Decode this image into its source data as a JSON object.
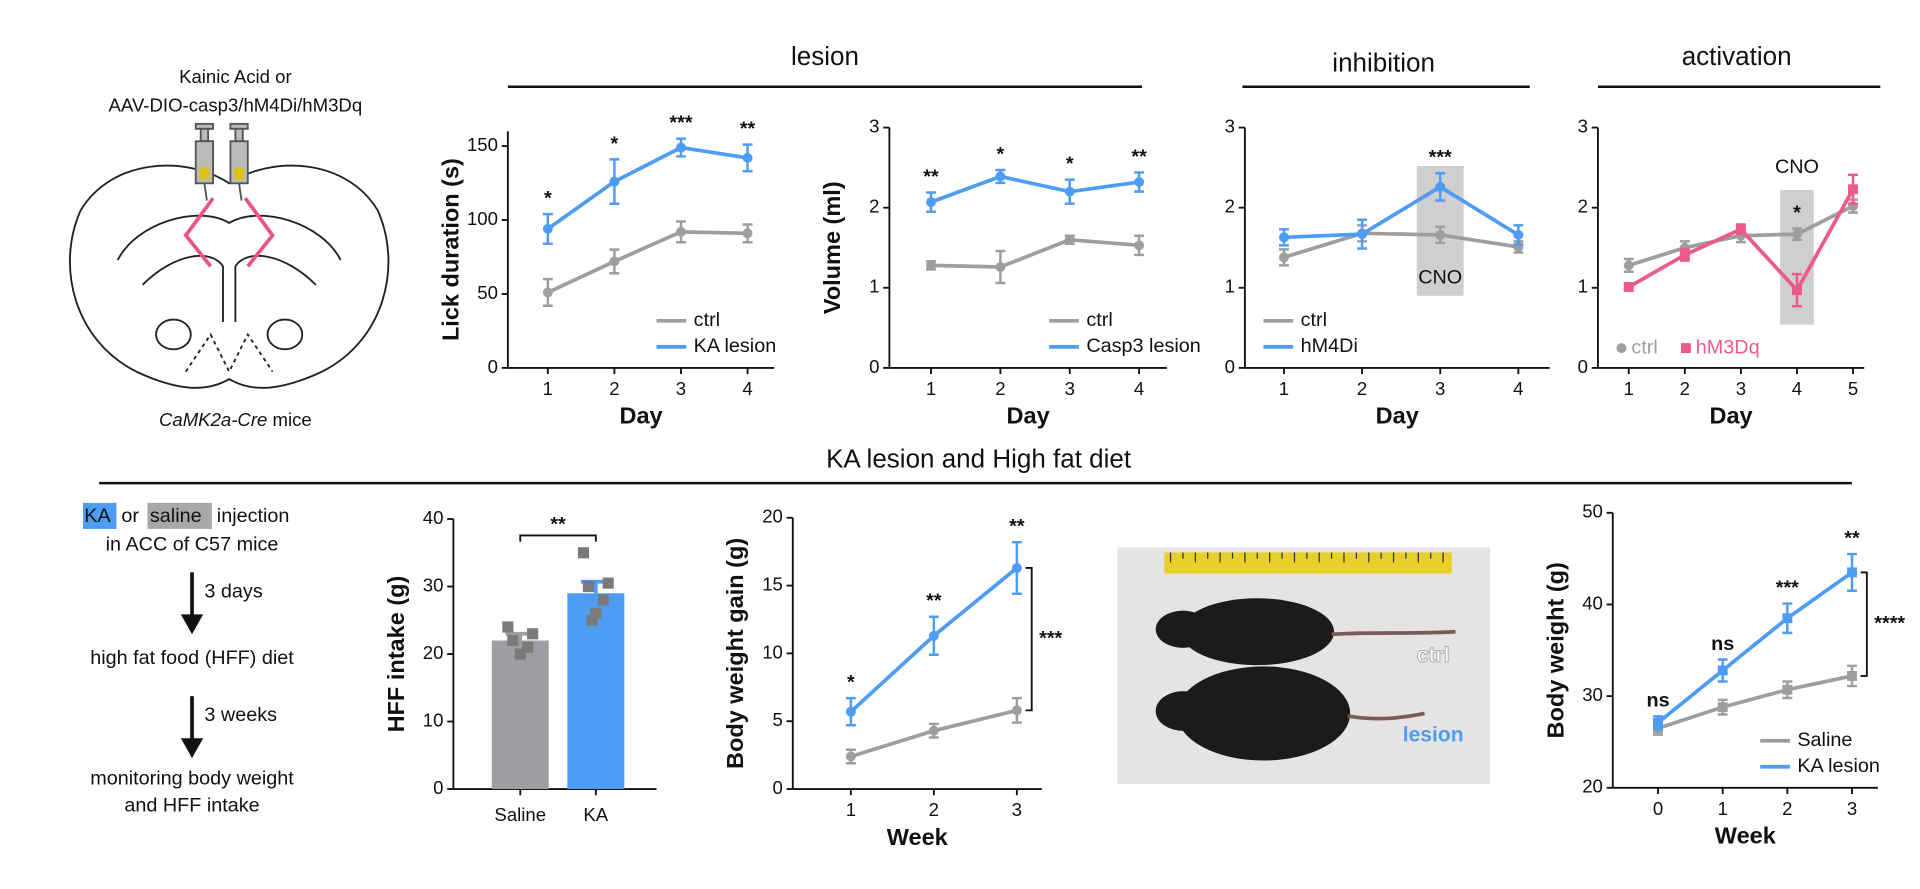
{
  "headers": {
    "lesion": "lesion",
    "inhibition": "inhibition",
    "activation": "activation",
    "hfd": "KA lesion and High fat diet"
  },
  "schematic": {
    "line1": "Kainic Acid or",
    "line2": "AAV-DIO-casp3/hM4Di/hM3Dq",
    "mouse_line": "CaMK2a-Cre",
    "mice": "mice"
  },
  "flow": {
    "ka": "KA",
    "or": "or",
    "saline": "saline",
    "injection": "injection",
    "site": "in ACC of C57 mice",
    "step1": "3 days",
    "diet": "high fat food (HFF) diet",
    "step2": "3 weeks",
    "monitor1": "monitoring body weight",
    "monitor2": "and HFF intake"
  },
  "photo": {
    "ctrl": "ctrl",
    "lesion": "lesion"
  },
  "chart_data": [
    {
      "type": "line",
      "ylabel": "Lick duration (s)",
      "xlabel": "Day",
      "x": [
        1,
        2,
        3,
        4
      ],
      "xlim": [
        0.4,
        4.4
      ],
      "xticks": [
        1,
        2,
        3,
        4
      ],
      "ylim": [
        0,
        160
      ],
      "yticks": [
        0,
        50,
        100,
        150
      ],
      "legend": "lower right",
      "series": [
        {
          "name": "ctrl",
          "color": "#9e9e9e",
          "values": [
            51,
            72,
            92,
            91
          ],
          "errors": [
            9,
            8,
            7,
            6
          ]
        },
        {
          "name": "KA lesion",
          "color": "#4e9cf3",
          "values": [
            94,
            126,
            149,
            142
          ],
          "errors": [
            10,
            15,
            6,
            9
          ]
        }
      ],
      "significance": [
        "*",
        "*",
        "***",
        "**"
      ]
    },
    {
      "type": "line",
      "ylabel": "Volume (ml)",
      "xlabel": "Day",
      "x": [
        1,
        2,
        3,
        4
      ],
      "xlim": [
        0.4,
        4.4
      ],
      "xticks": [
        1,
        2,
        3,
        4
      ],
      "ylim": [
        0,
        3
      ],
      "yticks": [
        0,
        1,
        2,
        3
      ],
      "legend": "lower right",
      "series": [
        {
          "name": "ctrl",
          "color": "#9e9e9e",
          "values": [
            1.28,
            1.26,
            1.6,
            1.53
          ],
          "errors": [
            0.05,
            0.2,
            0.05,
            0.12
          ]
        },
        {
          "name": "Casp3 lesion",
          "color": "#4e9cf3",
          "values": [
            2.07,
            2.39,
            2.2,
            2.32
          ],
          "errors": [
            0.12,
            0.08,
            0.15,
            0.12
          ]
        }
      ],
      "significance": [
        "**",
        "*",
        "*",
        "**"
      ]
    },
    {
      "type": "line",
      "xlabel": "Day",
      "x": [
        1,
        2,
        3,
        4
      ],
      "xlim": [
        0.5,
        4.4
      ],
      "xticks": [
        1,
        2,
        3,
        4
      ],
      "ylim": [
        0,
        3
      ],
      "yticks": [
        0,
        1,
        2,
        3
      ],
      "legend": "lower left",
      "highlight": {
        "x": 3,
        "label": "CNO",
        "label_position": "below"
      },
      "series": [
        {
          "name": "ctrl",
          "color": "#9e9e9e",
          "values": [
            1.38,
            1.68,
            1.66,
            1.51
          ],
          "errors": [
            0.1,
            0.1,
            0.1,
            0.07
          ]
        },
        {
          "name": "hM4Di",
          "color": "#4e9cf3",
          "values": [
            1.63,
            1.67,
            2.26,
            1.66
          ],
          "errors": [
            0.1,
            0.18,
            0.17,
            0.12
          ]
        }
      ],
      "significance": [
        null,
        null,
        "***",
        null
      ]
    },
    {
      "type": "line",
      "xlabel": "Day",
      "x": [
        1,
        2,
        3,
        4,
        5
      ],
      "xlim": [
        0.45,
        5.2
      ],
      "xticks": [
        1,
        2,
        3,
        4,
        5
      ],
      "ylim": [
        0,
        3
      ],
      "yticks": [
        0,
        1,
        2,
        3
      ],
      "legend": "lower left",
      "legend_orientation": "horizontal",
      "highlight": {
        "x": 4,
        "label": "CNO",
        "label_position": "above"
      },
      "series": [
        {
          "name": "ctrl",
          "color": "#9e9e9e",
          "values": [
            1.28,
            1.5,
            1.65,
            1.67,
            2.02
          ],
          "errors": [
            0.08,
            0.08,
            0.08,
            0.07,
            0.08
          ]
        },
        {
          "name": "hM3Dq",
          "color": "#ec5a8a",
          "marker": "square",
          "values": [
            1.01,
            1.41,
            1.73,
            0.97,
            2.23
          ],
          "errors": [
            0.04,
            0.07,
            0.06,
            0.2,
            0.18
          ]
        }
      ],
      "significance": [
        null,
        null,
        null,
        "*",
        null
      ]
    },
    {
      "type": "bar",
      "ylabel": "HFF intake (g)",
      "categories": [
        "Saline",
        "KA"
      ],
      "values": [
        22,
        29
      ],
      "errors": [
        1,
        1.7
      ],
      "colors": [
        "#9e9ea2",
        "#4e9cf3"
      ],
      "point_color": "#7a7a7a",
      "points": [
        [
          24,
          23,
          22,
          21,
          20
        ],
        [
          35,
          30.5,
          30,
          28,
          26,
          25
        ]
      ],
      "ylim": [
        0,
        40
      ],
      "yticks": [
        0,
        10,
        20,
        30,
        40
      ],
      "comparison": "**"
    },
    {
      "type": "line",
      "ylabel": "Body weight gain (g)",
      "xlabel": "Week",
      "x": [
        1,
        2,
        3
      ],
      "xlim": [
        0.3,
        3.3
      ],
      "xticks": [
        1,
        2,
        3
      ],
      "ylim": [
        0,
        20
      ],
      "yticks": [
        0,
        5,
        10,
        15,
        20
      ],
      "series": [
        {
          "name": "ctrl",
          "color": "#9e9e9e",
          "values": [
            2.4,
            4.3,
            5.8
          ],
          "errors": [
            0.5,
            0.5,
            0.9
          ]
        },
        {
          "name": "lesion",
          "color": "#4e9cf3",
          "values": [
            5.7,
            11.3,
            16.3
          ],
          "errors": [
            1,
            1.4,
            1.9
          ]
        }
      ],
      "significance": [
        "*",
        "**",
        "**"
      ],
      "bracket": {
        "x": 3,
        "label": "***"
      }
    },
    {
      "type": "line",
      "ylabel": "Body weight (g)",
      "xlabel": "Week",
      "x": [
        0,
        1,
        2,
        3
      ],
      "xlim": [
        -0.7,
        3.4
      ],
      "xticks": [
        0,
        1,
        2,
        3
      ],
      "ylim": [
        20,
        50
      ],
      "yticks": [
        20,
        30,
        40,
        50
      ],
      "legend": "lower right",
      "series": [
        {
          "name": "Saline",
          "color": "#9e9e9e",
          "marker": "square",
          "values": [
            26.5,
            28.8,
            30.7,
            32.2
          ],
          "errors": [
            0.7,
            0.8,
            0.9,
            1.1
          ]
        },
        {
          "name": "KA lesion",
          "color": "#4e9cf3",
          "marker": "square",
          "values": [
            27.1,
            32.8,
            38.5,
            43.5
          ],
          "errors": [
            0.7,
            1.2,
            1.6,
            2
          ]
        }
      ],
      "significance": [
        "ns",
        "ns",
        "***",
        "**"
      ],
      "bracket": {
        "x": 3,
        "label": "****"
      }
    }
  ]
}
